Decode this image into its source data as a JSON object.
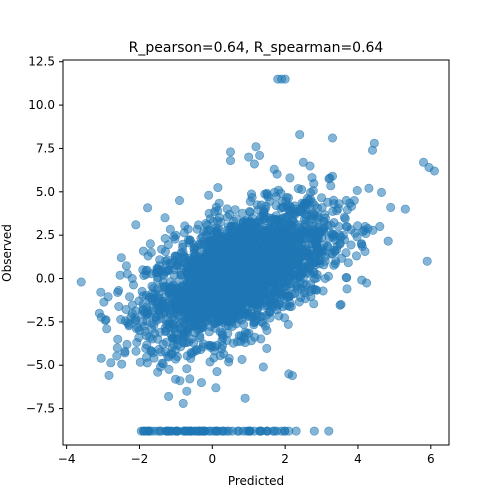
{
  "chart_data": {
    "type": "scatter",
    "title": "R_pearson=0.64, R_spearman=0.64",
    "xlabel": "Predicted",
    "ylabel": "Observed",
    "xlim": [
      -4.1,
      6.5
    ],
    "ylim": [
      -9.6,
      12.6
    ],
    "xticks": [
      -4,
      -2,
      0,
      2,
      4,
      6
    ],
    "yticks": [
      -7.5,
      -5.0,
      -2.5,
      0.0,
      2.5,
      5.0,
      7.5,
      10.0,
      12.5
    ],
    "xtick_labels": [
      "−4",
      "−2",
      "0",
      "2",
      "4",
      "6"
    ],
    "ytick_labels": [
      "−7.5",
      "−5.0",
      "−2.5",
      "0.0",
      "2.5",
      "5.0",
      "7.5",
      "10.0",
      "12.5"
    ],
    "grid": false,
    "marker_color": "#1f77b4",
    "series": [
      {
        "x": [
          -3.6,
          -3.1,
          -3.05,
          -2.9,
          -2.6,
          -2.5,
          -2.4,
          -2.2,
          -2.1,
          -1.9,
          -1.7,
          -1.5,
          -1.3,
          -1.1,
          -0.9,
          -0.7,
          -0.5,
          -0.3,
          -0.1,
          0.1,
          0.3,
          0.5,
          0.7,
          0.9,
          1.1,
          1.3,
          1.5,
          1.7,
          1.9,
          2.1,
          2.3,
          2.5,
          2.7,
          2.9,
          3.1,
          3.3,
          3.5,
          3.7,
          3.9,
          4.1,
          4.3,
          4.6,
          4.9,
          5.3,
          5.8,
          5.95,
          6.1,
          5.9,
          4.45,
          4.4,
          3.3,
          2.4,
          1.2,
          -0.7,
          -1.5,
          0.5,
          1.0,
          -1.2,
          -0.8,
          1.8,
          2.0,
          1.9,
          2.2,
          1.4,
          0.6,
          -0.2,
          -1.9,
          -1.0,
          0.0,
          0.9,
          2.7,
          3.1,
          2.0,
          3.6,
          4.2,
          -1.4,
          -0.4
        ],
        "y": [
          -0.2,
          -2.0,
          -4.6,
          -2.9,
          -0.8,
          1.2,
          -4.2,
          0.0,
          3.1,
          -1.0,
          2.0,
          -3.5,
          3.5,
          -4.0,
          4.5,
          -5.2,
          1.5,
          -6.0,
          4.8,
          -6.3,
          0.5,
          6.8,
          2.0,
          -6.9,
          3.5,
          7.1,
          -3.0,
          6.3,
          2.5,
          -5.5,
          4.0,
          6.7,
          1.0,
          3.5,
          0.0,
          5.9,
          2.5,
          -0.6,
          4.5,
          2.0,
          5.2,
          3.0,
          4.1,
          4.0,
          6.7,
          6.4,
          6.2,
          1.0,
          7.8,
          7.4,
          8.1,
          8.3,
          7.6,
          -6.5,
          -5.4,
          7.3,
          7.0,
          -6.8,
          -7.2,
          11.5,
          11.5,
          11.5,
          -5.6,
          -5.1,
          0.0,
          2.0,
          -1.5,
          2.5,
          -2.0,
          1.0,
          -0.3,
          1.0,
          3.5,
          2.5,
          3.0,
          0.5,
          -1.5
        ]
      }
    ],
    "bottom_band": {
      "y": -8.8,
      "x": [
        -1.95,
        -1.85,
        -1.75,
        -1.6,
        -1.4,
        -1.25,
        -1.1,
        -0.95,
        -0.8,
        -0.65,
        -0.5,
        -0.35,
        -0.2,
        -0.05,
        0.1,
        0.25,
        0.4,
        0.55,
        0.7,
        0.85,
        1.0,
        1.15,
        1.3,
        1.5,
        1.7,
        1.9,
        2.1,
        2.3,
        2.8,
        3.2
      ]
    }
  }
}
